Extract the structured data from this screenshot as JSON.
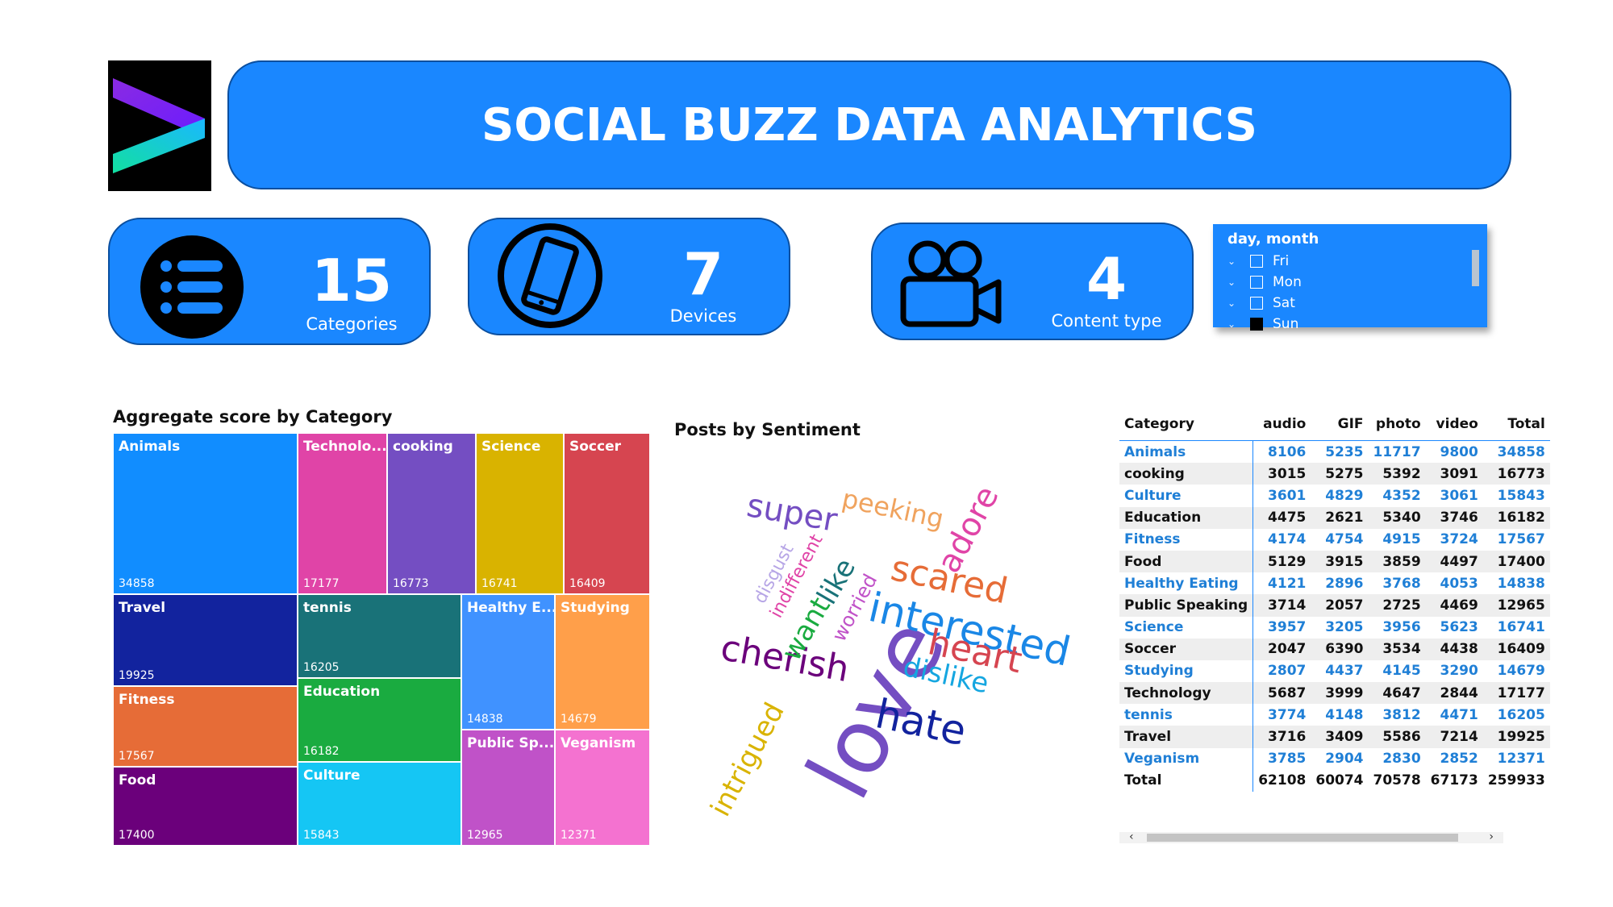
{
  "header": {
    "title": "SOCIAL BUZZ DATA ANALYTICS"
  },
  "kpis": [
    {
      "icon": "list-icon",
      "value": "15",
      "label": "Categories"
    },
    {
      "icon": "mobile-phone-icon",
      "value": "7",
      "label": "Devices"
    },
    {
      "icon": "video-camera-icon",
      "value": "4",
      "label": "Content type"
    }
  ],
  "slicer": {
    "title": "day, month",
    "items": [
      {
        "label": "Fri",
        "checked": false
      },
      {
        "label": "Mon",
        "checked": false
      },
      {
        "label": "Sat",
        "checked": false
      },
      {
        "label": "Sun",
        "checked": true
      }
    ]
  },
  "treemap": {
    "title": "Aggregate score by Category",
    "tiles": [
      {
        "name": "Animals",
        "value": "34858",
        "color": "#118dff"
      },
      {
        "name": "Technolo...",
        "value": "17177",
        "color": "#e044a7"
      },
      {
        "name": "cooking",
        "value": "16773",
        "color": "#744ec2"
      },
      {
        "name": "Science",
        "value": "16741",
        "color": "#d9b300"
      },
      {
        "name": "Soccer",
        "value": "16409",
        "color": "#d64550"
      },
      {
        "name": "Travel",
        "value": "19925",
        "color": "#12239e"
      },
      {
        "name": "tennis",
        "value": "16205",
        "color": "#197278"
      },
      {
        "name": "Healthy E...",
        "value": "14838",
        "color": "#4092ff"
      },
      {
        "name": "Studying",
        "value": "14679",
        "color": "#ff9f4a"
      },
      {
        "name": "Fitness",
        "value": "17567",
        "color": "#e66c37"
      },
      {
        "name": "Education",
        "value": "16182",
        "color": "#1aab40"
      },
      {
        "name": "Food",
        "value": "17400",
        "color": "#6b007b"
      },
      {
        "name": "Culture",
        "value": "15843",
        "color": "#15c6f4"
      },
      {
        "name": "Public Sp...",
        "value": "12965",
        "color": "#c052c8"
      },
      {
        "name": "Veganism",
        "value": "12371",
        "color": "#f472d0"
      }
    ]
  },
  "sentiment": {
    "title": "Posts by Sentiment",
    "words": [
      {
        "text": "love",
        "color": "#744ec2"
      },
      {
        "text": "super",
        "color": "#744ec2"
      },
      {
        "text": "peeking",
        "color": "#f0a35e"
      },
      {
        "text": "adore",
        "color": "#e044a7"
      },
      {
        "text": "scared",
        "color": "#e66c37"
      },
      {
        "text": "interested",
        "color": "#1a87e6"
      },
      {
        "text": "heart",
        "color": "#d64550"
      },
      {
        "text": "dislike",
        "color": "#15a6e0"
      },
      {
        "text": "hate",
        "color": "#12239e"
      },
      {
        "text": "cherish",
        "color": "#6b007b"
      },
      {
        "text": "intrigued",
        "color": "#d9b300"
      },
      {
        "text": "want",
        "color": "#1aab40"
      },
      {
        "text": "like",
        "color": "#197278"
      },
      {
        "text": "worried",
        "color": "#c052c8"
      },
      {
        "text": "indifferent",
        "color": "#e044a7"
      },
      {
        "text": "disgust",
        "color": "#b7a6e6"
      }
    ]
  },
  "matrix": {
    "columns": [
      "Category",
      "audio",
      "GIF",
      "photo",
      "video",
      "Total"
    ],
    "rows": [
      [
        "Animals",
        "8106",
        "5235",
        "11717",
        "9800",
        "34858"
      ],
      [
        "cooking",
        "3015",
        "5275",
        "5392",
        "3091",
        "16773"
      ],
      [
        "Culture",
        "3601",
        "4829",
        "4352",
        "3061",
        "15843"
      ],
      [
        "Education",
        "4475",
        "2621",
        "5340",
        "3746",
        "16182"
      ],
      [
        "Fitness",
        "4174",
        "4754",
        "4915",
        "3724",
        "17567"
      ],
      [
        "Food",
        "5129",
        "3915",
        "3859",
        "4497",
        "17400"
      ],
      [
        "Healthy Eating",
        "4121",
        "2896",
        "3768",
        "4053",
        "14838"
      ],
      [
        "Public Speaking",
        "3714",
        "2057",
        "2725",
        "4469",
        "12965"
      ],
      [
        "Science",
        "3957",
        "3205",
        "3956",
        "5623",
        "16741"
      ],
      [
        "Soccer",
        "2047",
        "6390",
        "3534",
        "4438",
        "16409"
      ],
      [
        "Studying",
        "2807",
        "4437",
        "4145",
        "3290",
        "14679"
      ],
      [
        "Technology",
        "5687",
        "3999",
        "4647",
        "2844",
        "17177"
      ],
      [
        "tennis",
        "3774",
        "4148",
        "3812",
        "4471",
        "16205"
      ],
      [
        "Travel",
        "3716",
        "3409",
        "5586",
        "7214",
        "19925"
      ],
      [
        "Veganism",
        "3785",
        "2904",
        "2830",
        "2852",
        "12371"
      ]
    ],
    "total": [
      "Total",
      "62108",
      "60074",
      "70578",
      "67173",
      "259933"
    ]
  },
  "colors": {
    "accent": "#1a87ff",
    "accent_border": "#0a4fa0",
    "table_link": "#1f7fd6"
  }
}
